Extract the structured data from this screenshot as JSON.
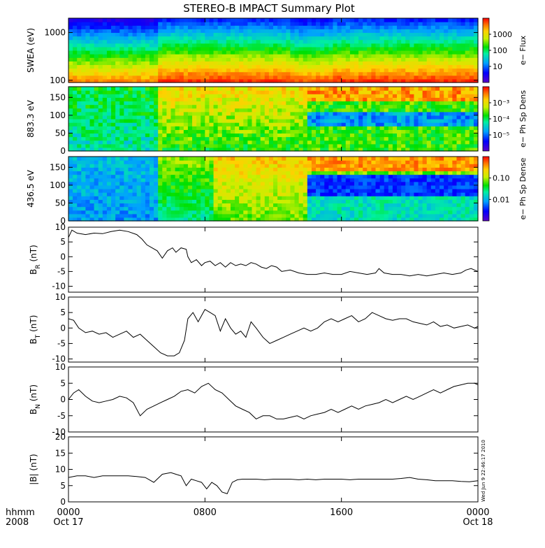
{
  "title": "STEREO-B IMPACT Summary Plot",
  "stamp": "Wed Jun  9 22:46:17 2010",
  "x_axis": {
    "row1_label": "hhmm",
    "row2_label": "2008",
    "ticks": [
      {
        "time_hours": 0,
        "label": "0000",
        "sublabel": "Oct 17"
      },
      {
        "time_hours": 8,
        "label": "0800",
        "sublabel": ""
      },
      {
        "time_hours": 16,
        "label": "1600",
        "sublabel": ""
      },
      {
        "time_hours": 24,
        "label": "0000",
        "sublabel": "Oct 18"
      }
    ]
  },
  "chart_data": [
    {
      "type": "heatmap",
      "id": "swea",
      "ylabel": "SWEA (eV)",
      "yscale": "log",
      "ylim": [
        90,
        2000
      ],
      "yticks": [
        {
          "value": 100,
          "label": "100"
        },
        {
          "value": 1000,
          "label": "1000"
        }
      ],
      "colorbar": {
        "label": "e− Flux",
        "scale": "log",
        "ticks": [
          {
            "value": 10,
            "label": "10"
          },
          {
            "value": 100,
            "label": "100"
          },
          {
            "value": 1000,
            "label": "1000"
          }
        ]
      },
      "description_intensity": "high flux at low energies (~100-200 eV), decreasing with energy; enhanced after ~0500"
    },
    {
      "type": "heatmap",
      "id": "pad883",
      "ylabel": "883.3 eV",
      "ylim": [
        0,
        180
      ],
      "yticks": [
        {
          "value": 0,
          "label": "0"
        },
        {
          "value": 50,
          "label": "50"
        },
        {
          "value": 100,
          "label": "100"
        },
        {
          "value": 150,
          "label": "150"
        }
      ],
      "colorbar": {
        "label": "e− Ph Sp Dens",
        "scale": "log",
        "ticks": [
          {
            "value": "1e-5",
            "label": "10⁻⁵"
          },
          {
            "value": "1e-4",
            "label": "10⁻⁴"
          },
          {
            "value": "1e-3",
            "label": "10⁻³"
          }
        ]
      }
    },
    {
      "type": "heatmap",
      "id": "pad436",
      "ylabel": "436.5 eV",
      "ylim": [
        0,
        180
      ],
      "yticks": [
        {
          "value": 0,
          "label": "0"
        },
        {
          "value": 50,
          "label": "50"
        },
        {
          "value": 100,
          "label": "100"
        },
        {
          "value": 150,
          "label": "150"
        }
      ],
      "colorbar": {
        "label": "e− Ph Sp Dense",
        "scale": "log",
        "ticks": [
          {
            "value": 0.01,
            "label": "0.01"
          },
          {
            "value": 0.1,
            "label": "0.10"
          }
        ]
      }
    },
    {
      "type": "line",
      "id": "br",
      "ylabel": "B_R (nT)",
      "ylabel_main": "B",
      "ylabel_sub": "R",
      "ylabel_unit": " (nT)",
      "ylim": [
        -12,
        10
      ],
      "yticks": [
        {
          "value": 10,
          "label": "10"
        },
        {
          "value": 5,
          "label": "5"
        },
        {
          "value": 0,
          "label": "0"
        },
        {
          "value": -5,
          "label": "-5"
        },
        {
          "value": -10,
          "label": "-10"
        }
      ],
      "x": [
        0,
        0.2,
        0.5,
        1,
        1.5,
        2,
        2.5,
        3,
        3.5,
        4,
        4.3,
        4.6,
        4.9,
        5.2,
        5.5,
        5.8,
        6.1,
        6.3,
        6.6,
        6.9,
        7.0,
        7.2,
        7.5,
        7.8,
        8.0,
        8.3,
        8.6,
        8.9,
        9.2,
        9.5,
        9.8,
        10.1,
        10.4,
        10.7,
        11.0,
        11.3,
        11.6,
        11.9,
        12.2,
        12.5,
        13,
        13.5,
        14,
        14.5,
        15,
        15.5,
        16,
        16.5,
        17,
        17.5,
        18,
        18.2,
        18.5,
        19,
        19.5,
        20,
        20.5,
        21,
        21.5,
        22,
        22.5,
        23,
        23.3,
        23.6,
        24
      ],
      "values": [
        6.5,
        9,
        8,
        7.5,
        8,
        7.8,
        8.5,
        9,
        8.5,
        7.5,
        6,
        4,
        3,
        2,
        -0.5,
        2,
        3,
        1.5,
        3,
        2.5,
        0,
        -2,
        -1,
        -3,
        -2,
        -1.5,
        -3,
        -2,
        -3.5,
        -2,
        -3,
        -2.5,
        -3,
        -2,
        -2.5,
        -3.5,
        -4,
        -3,
        -3.5,
        -5,
        -4.5,
        -5.5,
        -6,
        -6,
        -5.5,
        -6,
        -6,
        -5,
        -5.5,
        -6,
        -5.5,
        -4,
        -5.5,
        -6,
        -6,
        -6.5,
        -6,
        -6.5,
        -6,
        -5.5,
        -6,
        -5.5,
        -4.5,
        -4,
        -5
      ]
    },
    {
      "type": "line",
      "id": "bt",
      "ylabel": "B_T (nT)",
      "ylabel_main": "B",
      "ylabel_sub": "T",
      "ylabel_unit": " (nT)",
      "ylim": [
        -11,
        10
      ],
      "yticks": [
        {
          "value": 10,
          "label": "10"
        },
        {
          "value": 5,
          "label": "5"
        },
        {
          "value": 0,
          "label": "0"
        },
        {
          "value": -5,
          "label": "-5"
        },
        {
          "value": -10,
          "label": "-10"
        }
      ],
      "x": [
        0,
        0.3,
        0.6,
        1,
        1.4,
        1.8,
        2.2,
        2.6,
        3.0,
        3.4,
        3.8,
        4.2,
        4.6,
        5.0,
        5.4,
        5.8,
        6.2,
        6.5,
        6.8,
        7.0,
        7.3,
        7.6,
        8.0,
        8.3,
        8.6,
        8.9,
        9.2,
        9.5,
        9.8,
        10.1,
        10.4,
        10.7,
        11.0,
        11.4,
        11.8,
        12.2,
        12.6,
        13.0,
        13.4,
        13.8,
        14.2,
        14.6,
        15.0,
        15.4,
        15.8,
        16.2,
        16.6,
        17.0,
        17.4,
        17.8,
        18.2,
        18.6,
        19.0,
        19.4,
        19.8,
        20.2,
        20.6,
        21.0,
        21.4,
        21.8,
        22.2,
        22.6,
        23.0,
        23.4,
        23.8,
        24
      ],
      "values": [
        3,
        2.5,
        0,
        -1.5,
        -1,
        -2,
        -1.5,
        -3,
        -2,
        -1,
        -3,
        -2,
        -4,
        -6,
        -8,
        -9,
        -9,
        -8,
        -4,
        3,
        5,
        2,
        6,
        5,
        4,
        -1,
        3,
        0,
        -2,
        -1,
        -3,
        2,
        0,
        -3,
        -5,
        -4,
        -3,
        -2,
        -1,
        0,
        -1,
        0,
        2,
        3,
        2,
        3,
        4,
        2,
        3,
        5,
        4,
        3,
        2.5,
        3,
        3,
        2,
        1.5,
        1,
        2,
        0.5,
        1,
        0,
        0.5,
        1,
        0,
        0.5
      ]
    },
    {
      "type": "line",
      "id": "bn",
      "ylabel": "B_N (nT)",
      "ylabel_main": "B",
      "ylabel_sub": "N",
      "ylabel_unit": " (nT)",
      "ylim": [
        -10,
        10
      ],
      "yticks": [
        {
          "value": 10,
          "label": "10"
        },
        {
          "value": 5,
          "label": "5"
        },
        {
          "value": 0,
          "label": "0"
        },
        {
          "value": -5,
          "label": "-5"
        },
        {
          "value": -10,
          "label": "-10"
        }
      ],
      "x": [
        0,
        0.3,
        0.6,
        1.0,
        1.4,
        1.8,
        2.2,
        2.6,
        3.0,
        3.4,
        3.8,
        4.2,
        4.6,
        5.0,
        5.4,
        5.8,
        6.2,
        6.6,
        7.0,
        7.4,
        7.8,
        8.2,
        8.6,
        9.0,
        9.4,
        9.8,
        10.2,
        10.6,
        11.0,
        11.4,
        11.8,
        12.2,
        12.6,
        13.0,
        13.4,
        13.8,
        14.2,
        14.6,
        15.0,
        15.4,
        15.8,
        16.2,
        16.6,
        17.0,
        17.4,
        17.8,
        18.2,
        18.6,
        19.0,
        19.4,
        19.8,
        20.2,
        20.6,
        21.0,
        21.4,
        21.8,
        22.2,
        22.6,
        23.0,
        23.4,
        23.8,
        24
      ],
      "values": [
        0,
        2,
        3,
        1,
        -0.5,
        -1,
        -0.5,
        0,
        1,
        0.5,
        -1,
        -5,
        -3,
        -2,
        -1,
        0,
        1,
        2.5,
        3,
        2,
        4,
        5,
        3,
        2,
        0,
        -2,
        -3,
        -4,
        -6,
        -5,
        -5,
        -6,
        -6,
        -5.5,
        -5,
        -6,
        -5,
        -4.5,
        -4,
        -3,
        -4,
        -3,
        -2,
        -3,
        -2,
        -1.5,
        -1,
        0,
        -1,
        0,
        1,
        0,
        1,
        2,
        3,
        2,
        3,
        4,
        4.5,
        5,
        5,
        4.5
      ]
    },
    {
      "type": "line",
      "id": "bmag",
      "ylabel": "|B| (nT)",
      "ylabel_main": "|B|",
      "ylabel_sub": "",
      "ylabel_unit": " (nT)",
      "ylim": [
        0,
        20
      ],
      "yticks": [
        {
          "value": 20,
          "label": "20"
        },
        {
          "value": 15,
          "label": "15"
        },
        {
          "value": 10,
          "label": "10"
        },
        {
          "value": 5,
          "label": "5"
        },
        {
          "value": 0,
          "label": "0"
        }
      ],
      "x": [
        0,
        0.5,
        1,
        1.5,
        2,
        2.5,
        3,
        3.5,
        4,
        4.5,
        5,
        5.5,
        6,
        6.3,
        6.6,
        6.9,
        7.2,
        7.5,
        7.8,
        8.1,
        8.4,
        8.7,
        9.0,
        9.3,
        9.6,
        9.9,
        10.2,
        10.5,
        11,
        11.5,
        12,
        12.5,
        13,
        13.5,
        14,
        14.5,
        15,
        15.5,
        16,
        16.5,
        17,
        17.5,
        18,
        18.5,
        19,
        19.5,
        20,
        20.5,
        21,
        21.5,
        22,
        22.5,
        23,
        23.5,
        24
      ],
      "values": [
        7.5,
        8,
        8,
        7.5,
        8,
        8,
        8,
        8,
        7.8,
        7.5,
        6,
        8.5,
        9,
        8.5,
        8,
        5,
        7,
        6.5,
        6,
        4,
        6,
        5,
        3,
        2.5,
        6,
        6.8,
        7,
        7,
        7,
        6.8,
        7,
        7,
        7,
        6.8,
        7,
        6.8,
        7,
        7,
        7,
        6.8,
        7,
        7,
        7,
        7,
        7,
        7.2,
        7.5,
        7,
        6.8,
        6.5,
        6.5,
        6.5,
        6.3,
        6.2,
        6.5
      ]
    }
  ]
}
